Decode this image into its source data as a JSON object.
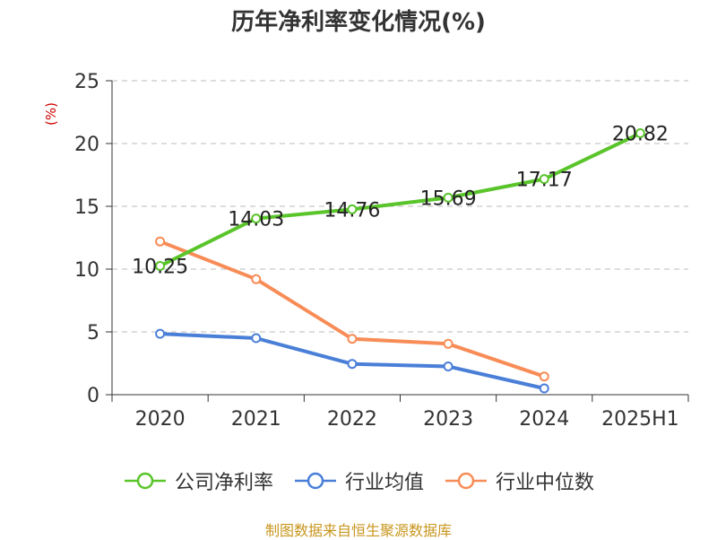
{
  "chart_data": {
    "type": "line",
    "title": "历年净利率变化情况(%)",
    "ylabel": "(%)",
    "xlabel": "",
    "categories": [
      "2020",
      "2021",
      "2022",
      "2023",
      "2024",
      "2025H1"
    ],
    "ylim": [
      0,
      25
    ],
    "yticks": [
      0,
      5,
      10,
      15,
      20,
      25
    ],
    "grid": true,
    "legend_position": "bottom",
    "series": [
      {
        "name": "公司净利率",
        "color": "#5ac42b",
        "values": [
          10.25,
          14.03,
          14.76,
          15.69,
          17.17,
          20.82
        ],
        "show_labels": true
      },
      {
        "name": "行业均值",
        "color": "#4a7fd8",
        "values": [
          4.85,
          4.5,
          2.45,
          2.25,
          0.5,
          null
        ],
        "show_labels": false
      },
      {
        "name": "行业中位数",
        "color": "#f88c57",
        "values": [
          12.2,
          9.2,
          4.45,
          4.05,
          1.45,
          null
        ],
        "show_labels": false
      }
    ]
  },
  "footer": {
    "source": "制图数据来自恒生聚源数据库"
  }
}
